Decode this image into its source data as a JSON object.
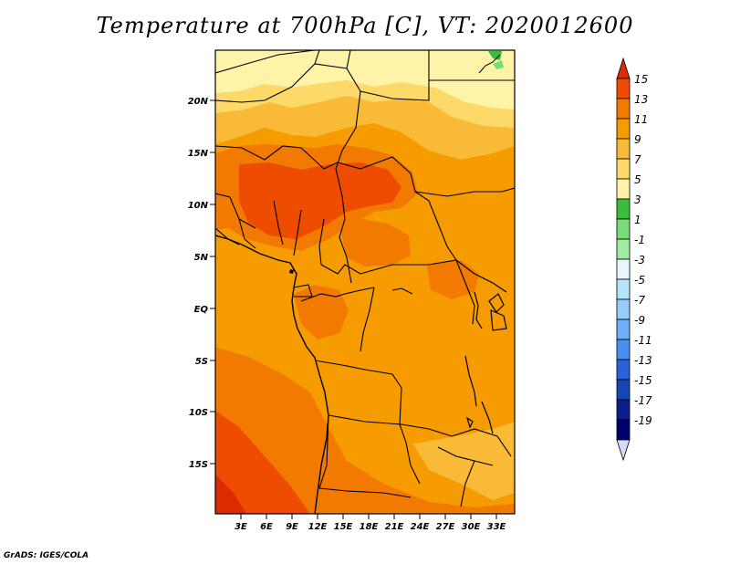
{
  "title": "Temperature at 700hPa [C], VT: 2020012600",
  "credit": "GrADS: IGES/COLA",
  "map": {
    "lat_ticks": [
      "20N",
      "15N",
      "10N",
      "5N",
      "EQ",
      "5S",
      "10S",
      "15S"
    ],
    "lon_ticks": [
      "3E",
      "6E",
      "9E",
      "12E",
      "15E",
      "18E",
      "21E",
      "24E",
      "27E",
      "30E",
      "33E"
    ]
  },
  "colorbar": {
    "labels": [
      "15",
      "13",
      "11",
      "9",
      "7",
      "5",
      "3",
      "1",
      "-1",
      "-3",
      "-5",
      "-7",
      "-9",
      "-11",
      "-13",
      "-15",
      "-17",
      "-19"
    ],
    "colors": [
      "#dc2b00",
      "#ee4c00",
      "#f27a00",
      "#f69c00",
      "#f9ba37",
      "#fcd968",
      "#fff3a8",
      "#3cbc3c",
      "#78dc78",
      "#a0eca0",
      "#e6f6fa",
      "#b4e6fa",
      "#96cdfa",
      "#6eaff5",
      "#4691f0",
      "#2862dc",
      "#1446b4",
      "#0a1e8c",
      "#00006e",
      "#d8d8f8"
    ]
  },
  "field_colors": {
    "c15": "#dc2b00",
    "c13": "#ee4c00",
    "c11": "#f27a00",
    "c9": "#f69c00",
    "c7": "#f9ba37",
    "c5": "#fcd968",
    "c3": "#fff3a8",
    "c1": "#3cbc3c",
    "cm1": "#78dc78"
  }
}
